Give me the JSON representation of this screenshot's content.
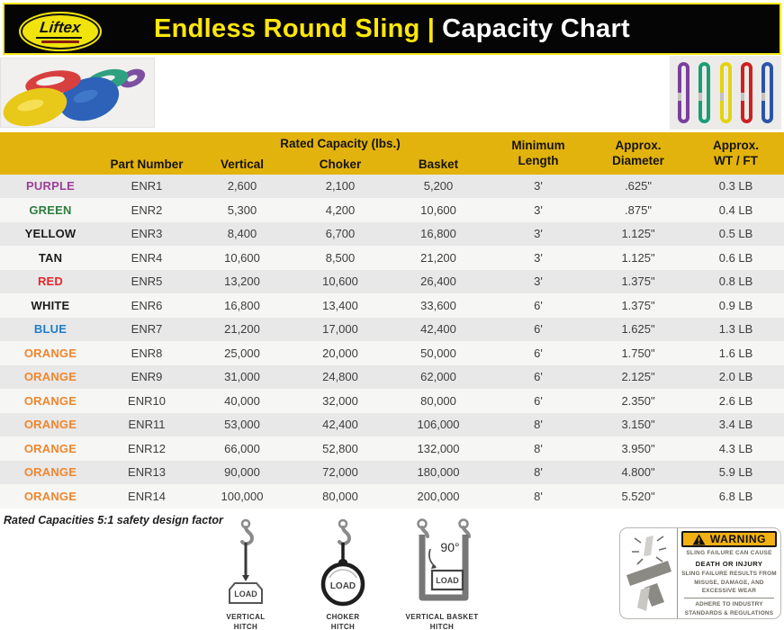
{
  "header": {
    "logo_text": "Liftex",
    "title_accent": "Endless Round Sling",
    "separator": "|",
    "title_rest": "Capacity Chart"
  },
  "table": {
    "group_header": "Rated Capacity (lbs.)",
    "col_part": "Part Number",
    "col_vertical": "Vertical",
    "col_choker": "Choker",
    "col_basket": "Basket",
    "col_min_length": "Minimum\nLength",
    "col_diameter": "Approx.\nDiameter",
    "col_wt": "Approx.\nWT / FT",
    "rows": [
      {
        "color_label": "PURPLE",
        "color_hex": "#9b3f97",
        "part": "ENR1",
        "vertical": "2,600",
        "choker": "2,100",
        "basket": "5,200",
        "min_length": "3'",
        "diameter": ".625\"",
        "weight": "0.3 LB"
      },
      {
        "color_label": "GREEN",
        "color_hex": "#2e7d3f",
        "part": "ENR2",
        "vertical": "5,300",
        "choker": "4,200",
        "basket": "10,600",
        "min_length": "3'",
        "diameter": ".875\"",
        "weight": "0.4 LB"
      },
      {
        "color_label": "YELLOW",
        "color_hex": "#1b1b1b",
        "part": "ENR3",
        "vertical": "8,400",
        "choker": "6,700",
        "basket": "16,800",
        "min_length": "3'",
        "diameter": "1.125\"",
        "weight": "0.5 LB"
      },
      {
        "color_label": "TAN",
        "color_hex": "#1b1b1b",
        "part": "ENR4",
        "vertical": "10,600",
        "choker": "8,500",
        "basket": "21,200",
        "min_length": "3'",
        "diameter": "1.125\"",
        "weight": "0.6 LB"
      },
      {
        "color_label": "RED",
        "color_hex": "#e5282c",
        "part": "ENR5",
        "vertical": "13,200",
        "choker": "10,600",
        "basket": "26,400",
        "min_length": "3'",
        "diameter": "1.375\"",
        "weight": "0.8 LB"
      },
      {
        "color_label": "WHITE",
        "color_hex": "#1b1b1b",
        "part": "ENR6",
        "vertical": "16,800",
        "choker": "13,400",
        "basket": "33,600",
        "min_length": "6'",
        "diameter": "1.375\"",
        "weight": "0.9 LB"
      },
      {
        "color_label": "BLUE",
        "color_hex": "#1e7ccb",
        "part": "ENR7",
        "vertical": "21,200",
        "choker": "17,000",
        "basket": "42,400",
        "min_length": "6'",
        "diameter": "1.625\"",
        "weight": "1.3 LB"
      },
      {
        "color_label": "ORANGE",
        "color_hex": "#f0862e",
        "part": "ENR8",
        "vertical": "25,000",
        "choker": "20,000",
        "basket": "50,000",
        "min_length": "6'",
        "diameter": "1.750\"",
        "weight": "1.6 LB"
      },
      {
        "color_label": "ORANGE",
        "color_hex": "#f0862e",
        "part": "ENR9",
        "vertical": "31,000",
        "choker": "24,800",
        "basket": "62,000",
        "min_length": "6'",
        "diameter": "2.125\"",
        "weight": "2.0 LB"
      },
      {
        "color_label": "ORANGE",
        "color_hex": "#f0862e",
        "part": "ENR10",
        "vertical": "40,000",
        "choker": "32,000",
        "basket": "80,000",
        "min_length": "6'",
        "diameter": "2.350\"",
        "weight": "2.6 LB"
      },
      {
        "color_label": "ORANGE",
        "color_hex": "#f0862e",
        "part": "ENR11",
        "vertical": "53,000",
        "choker": "42,400",
        "basket": "106,000",
        "min_length": "8'",
        "diameter": "3.150\"",
        "weight": "3.4 LB"
      },
      {
        "color_label": "ORANGE",
        "color_hex": "#f0862e",
        "part": "ENR12",
        "vertical": "66,000",
        "choker": "52,800",
        "basket": "132,000",
        "min_length": "8'",
        "diameter": "3.950\"",
        "weight": "4.3 LB"
      },
      {
        "color_label": "ORANGE",
        "color_hex": "#f0862e",
        "part": "ENR13",
        "vertical": "90,000",
        "choker": "72,000",
        "basket": "180,000",
        "min_length": "8'",
        "diameter": "4.800\"",
        "weight": "5.9 LB"
      },
      {
        "color_label": "ORANGE",
        "color_hex": "#f0862e",
        "part": "ENR14",
        "vertical": "100,000",
        "choker": "80,000",
        "basket": "200,000",
        "min_length": "8'",
        "diameter": "5.520\"",
        "weight": "6.8 LB"
      }
    ]
  },
  "footnote": "Rated Capacities 5:1 safety design factor",
  "hitches": [
    {
      "load_label": "LOAD",
      "caption": "VERTICAL\nHITCH"
    },
    {
      "load_label": "LOAD",
      "caption": "CHOKER\nHITCH"
    },
    {
      "load_label": "LOAD",
      "caption": "VERTICAL BASKET\nHITCH",
      "angle": "90°"
    }
  ],
  "warning_label": {
    "banner": "WARNING",
    "line1": "SLING FAILURE CAN CAUSE",
    "line2": "DEATH OR INJURY",
    "line3": "SLING FAILURE RESULTS FROM\nMISUSE, DAMAGE, AND\nEXCESSIVE WEAR",
    "line4": "ADHERE TO INDUSTRY\nSTANDARDS & REGULATIONS"
  },
  "colors": {
    "table_header_gold": "#e3b30d",
    "banner_yellow": "#ffe70a",
    "row_stripe_dark": "#e8e8e8",
    "row_stripe_light": "#f6f6f5",
    "warning_banner": "#f3b013"
  },
  "sling_loop_colors": [
    "#7b3f9e",
    "#1a9e77",
    "#e3d30e",
    "#cc2224",
    "#2a55a8"
  ]
}
